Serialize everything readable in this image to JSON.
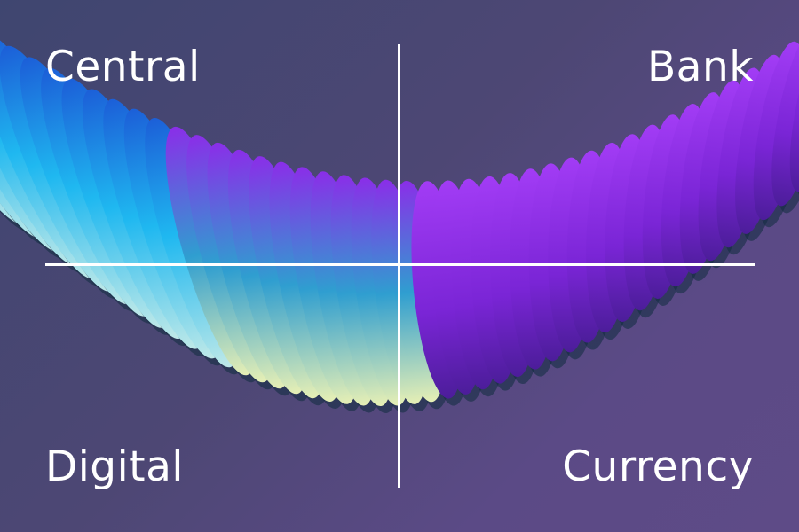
{
  "labels": {
    "top_left": "Central",
    "top_right": "Bank",
    "bottom_left": "Digital",
    "bottom_right": "Currency"
  },
  "colors": {
    "background": "#4d4774",
    "text": "#ffffff",
    "divider": "#ffffff",
    "ribbon_cyan": "#1fb8f0",
    "ribbon_purple": "#8a2ee8",
    "ribbon_cream": "#e8f0b8"
  }
}
